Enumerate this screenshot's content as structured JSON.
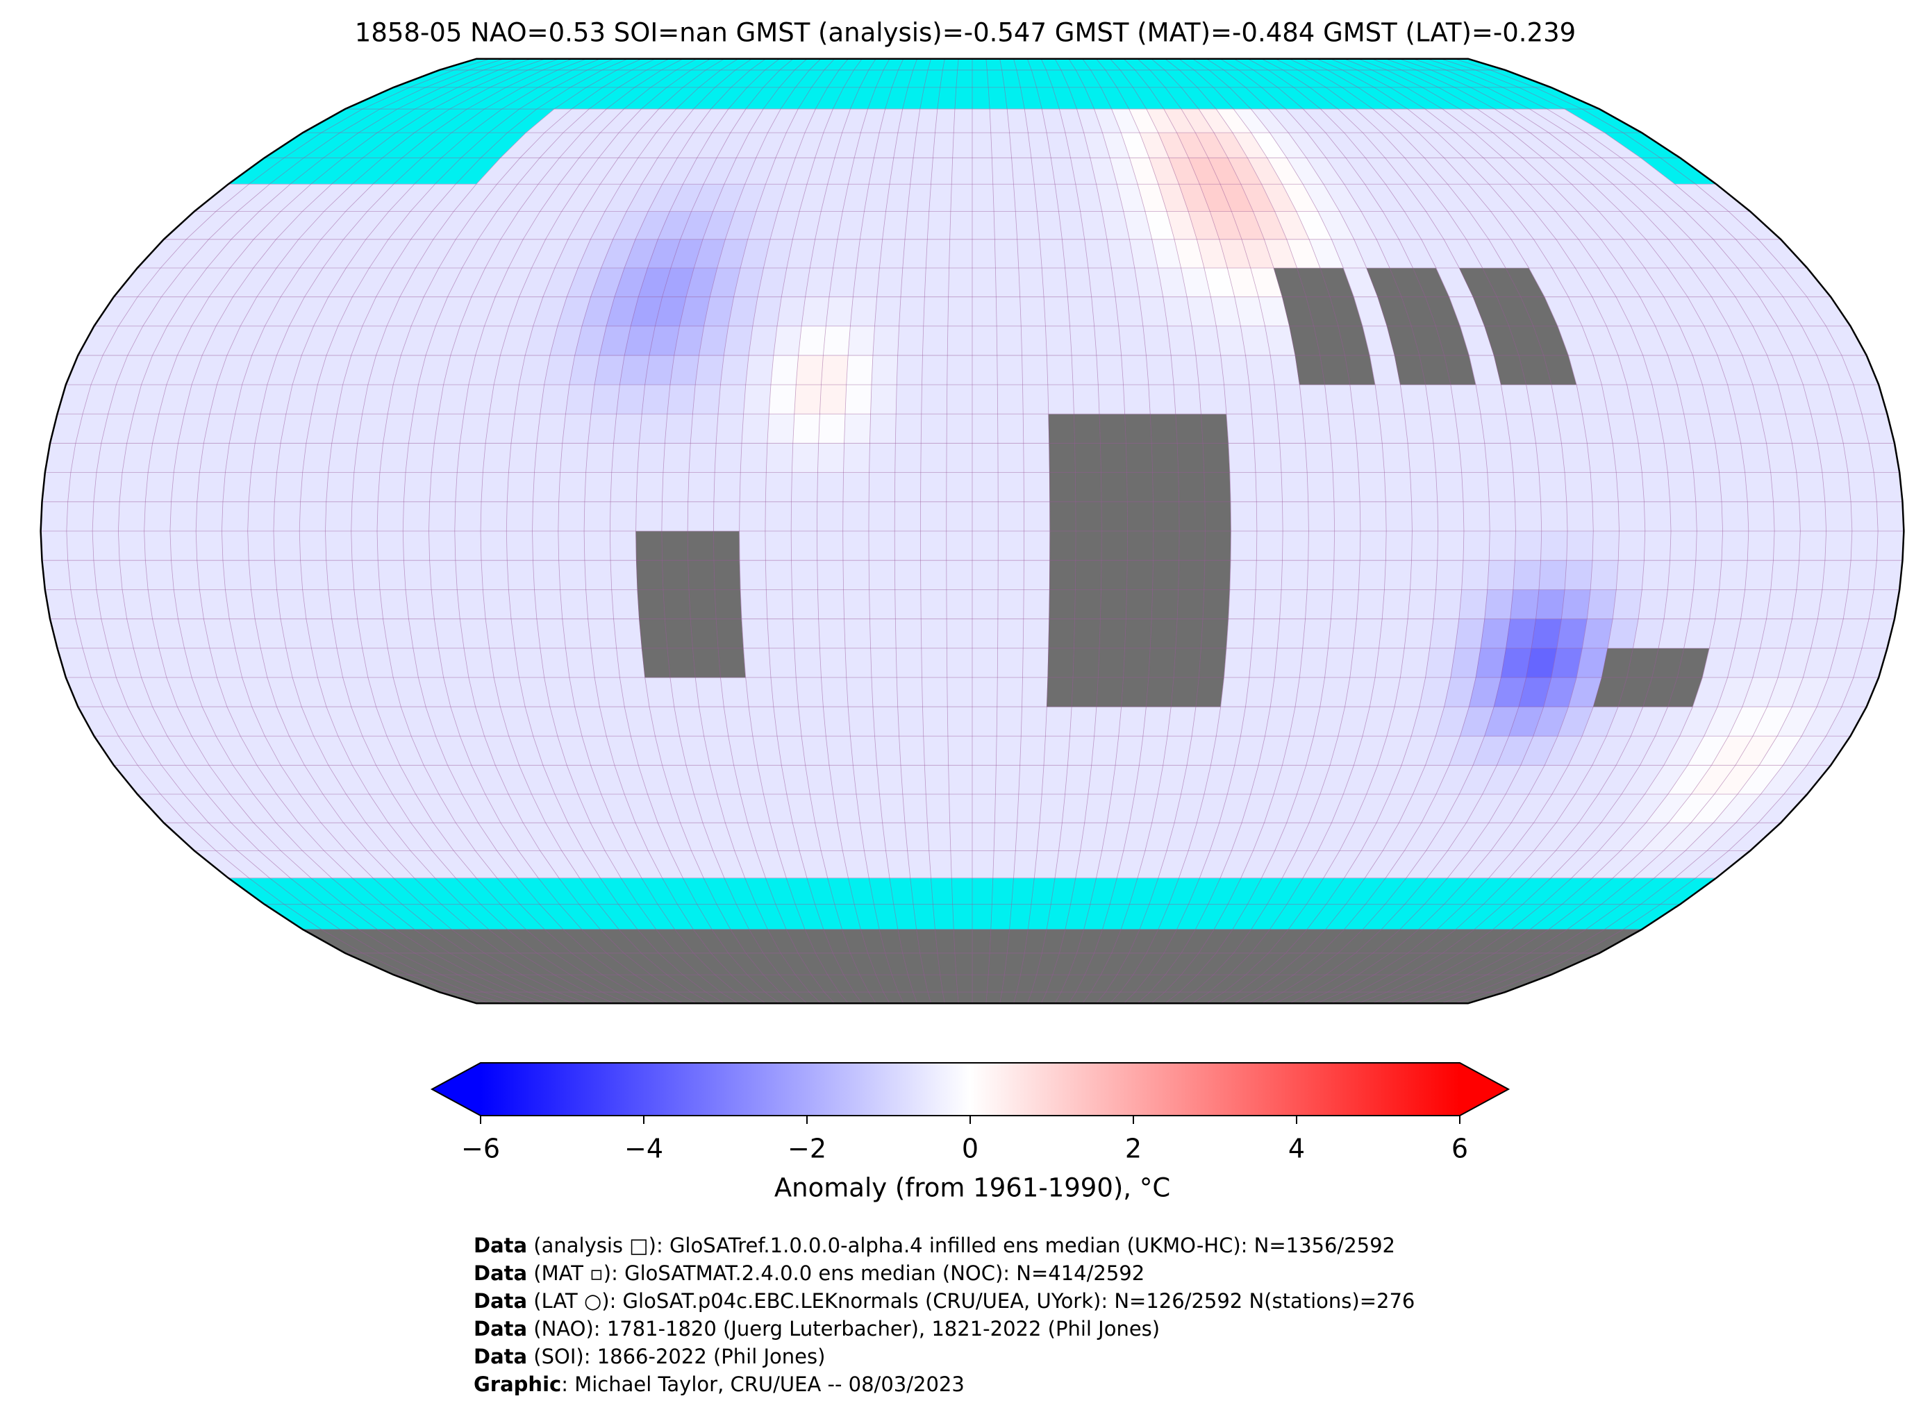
{
  "title": "1858-05 NAO=0.53 SOI=nan GMST (analysis)=-0.547 GMST (MAT)=-0.484 GMST (LAT)=-0.239",
  "colorbar": {
    "label": "Anomaly (from 1961-1990), °C",
    "lim": [
      -6,
      6
    ],
    "ticks": [
      {
        "value": -6,
        "label": "−6"
      },
      {
        "value": -4,
        "label": "−4"
      },
      {
        "value": -2,
        "label": "−2"
      },
      0,
      2,
      4,
      6
    ],
    "colors": [
      "#0000ff",
      "#ffffff",
      "#ff0000"
    ]
  },
  "footer": [
    {
      "bold": "Data",
      "text": " (analysis □): GloSATref.1.0.0.0-alpha.4 infilled ens median (UKMO-HC): N=1356/2592"
    },
    {
      "bold": "Data",
      "text": " (MAT ▫): GloSATMAT.2.4.0.0 ens median (NOC): N=414/2592"
    },
    {
      "bold": "Data",
      "text": " (LAT ○): GloSAT.p04c.EBC.LEKnormals (CRU/UEA, UYork): N=126/2592 N(stations)=276"
    },
    {
      "bold": "Data",
      "text": " (NAO): 1781-1820 (Juerg Luterbacher), 1821-2022 (Phil Jones)"
    },
    {
      "bold": "Data",
      "text": " (SOI): 1866-2022 (Phil Jones)"
    },
    {
      "bold": "Graphic",
      "text": ": Michael Taylor, CRU/UEA -- 08/03/2023"
    }
  ]
}
